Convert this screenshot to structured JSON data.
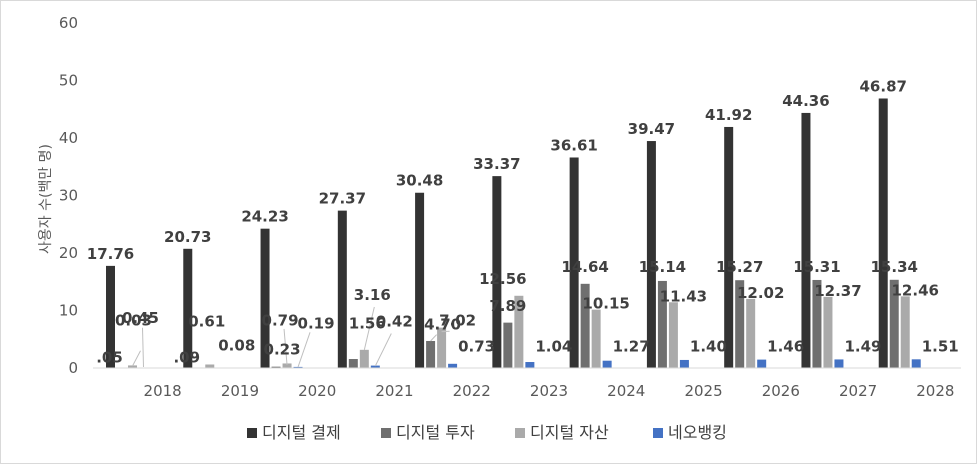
{
  "chart_data": {
    "type": "bar",
    "title": "",
    "ylabel": "사용자 수(백만 명)",
    "xlabel": "",
    "ylim": [
      0,
      60
    ],
    "yticks": [
      0,
      10,
      20,
      30,
      40,
      50,
      60
    ],
    "grid": false,
    "legend": "bottom",
    "categories": [
      "2018",
      "2019",
      "2020",
      "2021",
      "2022",
      "2023",
      "2024",
      "2025",
      "2026",
      "2027",
      "2028"
    ],
    "series": [
      {
        "name": "디지털 결제",
        "color": "#333333",
        "values": [
          17.76,
          20.73,
          24.23,
          27.37,
          30.48,
          33.37,
          36.61,
          39.47,
          41.92,
          44.36,
          46.87
        ],
        "labels": [
          "17.76",
          "20.73",
          "24.23",
          "27.37",
          "30.48",
          "33.37",
          "36.61",
          "39.47",
          "41.92",
          "44.36",
          "46.87"
        ]
      },
      {
        "name": "디지털 투자",
        "color": "#6f6f6f",
        "values": [
          0.05,
          0.09,
          0.23,
          1.56,
          4.7,
          7.89,
          14.64,
          15.14,
          15.27,
          15.31,
          15.34
        ],
        "labels": [
          ".05",
          ".09",
          "0.23",
          "1.56",
          "4.70",
          "7.89",
          "14.64",
          "15.14",
          "15.27",
          "15.31",
          "15.34"
        ]
      },
      {
        "name": "디지털 자산",
        "color": "#aaaaaa",
        "values": [
          0.45,
          0.61,
          0.79,
          3.16,
          7.02,
          12.56,
          10.15,
          11.43,
          12.02,
          12.37,
          12.46
        ],
        "labels": [
          "0.45",
          "0.61",
          "0.79",
          "3.16",
          "7.02",
          "12.56",
          "10.15",
          "11.43",
          "12.02",
          "12.37",
          "12.46"
        ]
      },
      {
        "name": "네오뱅킹",
        "color": "#4472c4",
        "values": [
          0.03,
          0.08,
          0.19,
          0.42,
          0.73,
          1.04,
          1.27,
          1.4,
          1.46,
          1.49,
          1.51
        ],
        "labels": [
          "0.03",
          "0.08",
          "0.19",
          "0.42",
          "0.73",
          "1.04",
          "1.27",
          "1.40",
          "1.46",
          "1.49",
          "1.51"
        ]
      }
    ]
  }
}
